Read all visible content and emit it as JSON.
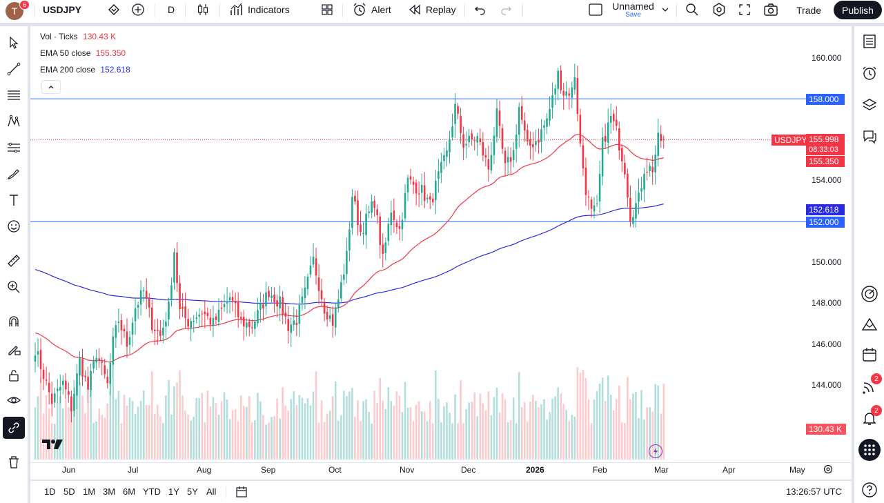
{
  "topbar": {
    "avatar_letter": "T",
    "avatar_badge": "6",
    "symbol": "USDJPY",
    "interval": "D",
    "indicators": "Indicators",
    "alert": "Alert",
    "replay": "Replay",
    "layout_name": "Unnamed",
    "layout_save": "Save",
    "trade": "Trade",
    "publish": "Publish"
  },
  "legend": {
    "vol_label": "Vol · Ticks",
    "vol_value": "130.43 K",
    "ema50_label": "EMA 50 close",
    "ema50_value": "155.350",
    "ema200_label": "EMA 200 close",
    "ema200_value": "152.618"
  },
  "price_axis": {
    "ticks": [
      "160.000",
      "158.000",
      "154.000",
      "152.000",
      "150.000",
      "148.000",
      "146.000",
      "144.000"
    ],
    "symbol_tag": "USDJPY",
    "last_price": "155.998",
    "countdown": "08:33:03",
    "ema50_tag": "155.350",
    "ema200_tag": "152.618",
    "level_158": "158.000",
    "level_152": "152.000",
    "volume_tag": "130.43 K"
  },
  "time_axis": {
    "labels": [
      "Jun",
      "Jul",
      "Aug",
      "Sep",
      "Oct",
      "Nov",
      "Dec",
      "2026",
      "Jan",
      "Feb",
      "Mar",
      "Apr",
      "May"
    ]
  },
  "bottom": {
    "ranges": [
      "1D",
      "5D",
      "1M",
      "3M",
      "6M",
      "YTD",
      "1Y",
      "5Y",
      "All"
    ],
    "clock": "13:26:57 UTC"
  },
  "right_sidebar": {
    "feed_badge": "2",
    "alerts_badge": "2"
  },
  "colors": {
    "up": "#22ab94",
    "down": "#f23645",
    "ema50": "#f23645",
    "ema200": "#2a2ae0",
    "hline": "#2962ff",
    "up_vol": "#b2dfdb",
    "down_vol": "#fccbcd"
  },
  "chart_data": {
    "type": "candlestick",
    "symbol": "USDJPY",
    "interval": "D",
    "ylim": [
      142.6,
      161.0
    ],
    "hlines": [
      158.0,
      152.0
    ],
    "last": 155.998,
    "ema50_last": 155.35,
    "ema200_last": 152.618,
    "waypoints": [
      [
        0,
        145.8
      ],
      [
        6,
        143.2
      ],
      [
        10,
        144.1
      ],
      [
        13,
        142.9
      ],
      [
        16,
        145.2
      ],
      [
        19,
        143.8
      ],
      [
        22,
        145.6
      ],
      [
        26,
        144.0
      ],
      [
        28,
        146.1
      ],
      [
        30,
        147.2
      ],
      [
        33,
        146.0
      ],
      [
        36,
        147.8
      ],
      [
        39,
        148.6
      ],
      [
        42,
        147.0
      ],
      [
        45,
        146.4
      ],
      [
        48,
        147.8
      ],
      [
        50,
        150.6
      ],
      [
        52,
        147.6
      ],
      [
        55,
        147.1
      ],
      [
        60,
        147.6
      ],
      [
        64,
        147.0
      ],
      [
        70,
        148.3
      ],
      [
        74,
        147.1
      ],
      [
        78,
        146.9
      ],
      [
        84,
        148.6
      ],
      [
        88,
        148.0
      ],
      [
        91,
        146.9
      ],
      [
        94,
        147.2
      ],
      [
        97,
        148.5
      ],
      [
        100,
        150.1
      ],
      [
        104,
        147.8
      ],
      [
        107,
        147.1
      ],
      [
        109,
        148.2
      ],
      [
        112,
        150.3
      ],
      [
        114,
        153.3
      ],
      [
        117,
        151.5
      ],
      [
        122,
        153.0
      ],
      [
        125,
        150.1
      ],
      [
        128,
        152.6
      ],
      [
        131,
        151.6
      ],
      [
        134,
        154.0
      ],
      [
        139,
        153.5
      ],
      [
        142,
        152.8
      ],
      [
        145,
        154.2
      ],
      [
        148,
        155.3
      ],
      [
        151,
        157.6
      ],
      [
        154,
        155.8
      ],
      [
        159,
        156.1
      ],
      [
        163,
        154.6
      ],
      [
        166,
        157.2
      ],
      [
        169,
        154.6
      ],
      [
        172,
        155.4
      ],
      [
        174,
        157.6
      ],
      [
        177,
        155.6
      ],
      [
        181,
        156.1
      ],
      [
        184,
        157.0
      ],
      [
        186,
        158.0
      ],
      [
        188,
        159.2
      ],
      [
        190,
        158.3
      ],
      [
        193,
        158.4
      ],
      [
        194,
        159.2
      ],
      [
        196,
        155.7
      ],
      [
        198,
        153.6
      ],
      [
        200,
        152.4
      ],
      [
        202,
        152.6
      ],
      [
        204,
        155.8
      ],
      [
        207,
        157.1
      ],
      [
        209,
        156.4
      ],
      [
        212,
        154.6
      ],
      [
        214,
        152.3
      ],
      [
        217,
        153.1
      ],
      [
        219,
        154.6
      ],
      [
        222,
        154.6
      ],
      [
        224,
        156.0
      ],
      [
        226,
        155.998
      ]
    ],
    "volume_max_k": 190,
    "volume_last_k": 130.43
  }
}
